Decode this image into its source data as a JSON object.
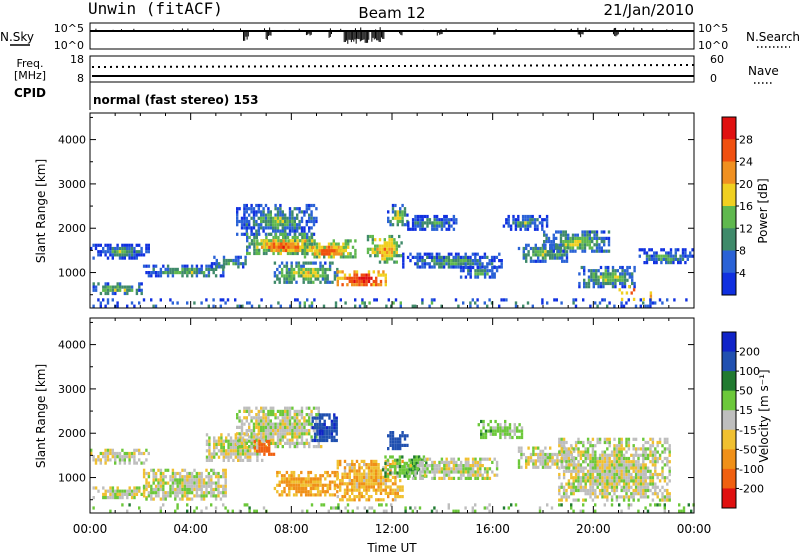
{
  "header": {
    "station": "Unwin (fitACF)",
    "beam": "Beam 12",
    "date": "21/Jan/2010"
  },
  "noise_panel": {
    "left_label": "N.Sky",
    "right_label": "N.Search",
    "left_ticks": [
      "10^5",
      "10^0"
    ],
    "right_ticks": [
      "10^5",
      "10^0"
    ]
  },
  "freq_panel": {
    "left_label_1": "Freq.",
    "left_label_2": "[MHz]",
    "right_label": "Nave",
    "left_ticks": [
      "18",
      "8"
    ],
    "right_ticks": [
      "60",
      "0"
    ]
  },
  "cpid_panel": {
    "label": "CPID",
    "text": "normal (fast stereo) 153"
  },
  "chart_data": [
    {
      "type": "heatmap",
      "panel": "power",
      "ylabel": "Slant Range [km]",
      "yticks": [
        1000,
        2000,
        3000,
        4000
      ],
      "ylim": [
        200,
        4600
      ],
      "xlim": [
        0,
        24
      ],
      "colorbar": {
        "label": "Power [dB]",
        "ticks": [
          4,
          8,
          12,
          16,
          20,
          24,
          28
        ],
        "colors": [
          "#1030e0",
          "#2a62d6",
          "#3f8a6a",
          "#5fb84e",
          "#f0d020",
          "#f09020",
          "#f05010",
          "#e01010"
        ],
        "range": [
          0,
          32
        ]
      },
      "scatter_regions": [
        {
          "t": [
            0.0,
            2.3
          ],
          "r": [
            1350,
            1650
          ],
          "p": 6
        },
        {
          "t": [
            0.1,
            2.1
          ],
          "r": [
            550,
            780
          ],
          "p": 10
        },
        {
          "t": [
            2.1,
            5.3
          ],
          "r": [
            940,
            1180
          ],
          "p": 9
        },
        {
          "t": [
            4.8,
            6.3
          ],
          "r": [
            1150,
            1380
          ],
          "p": 8
        },
        {
          "t": [
            5.8,
            9.0
          ],
          "r": [
            1850,
            2550
          ],
          "p": 8
        },
        {
          "t": [
            6.2,
            8.8
          ],
          "r": [
            1420,
            1900
          ],
          "p": 15
        },
        {
          "t": [
            6.6,
            8.6
          ],
          "r": [
            1500,
            1750
          ],
          "p": 22
        },
        {
          "t": [
            8.4,
            10.5
          ],
          "r": [
            1350,
            1750
          ],
          "p": 17
        },
        {
          "t": [
            8.8,
            10.1
          ],
          "r": [
            1400,
            1600
          ],
          "p": 22
        },
        {
          "t": [
            7.3,
            9.8
          ],
          "r": [
            800,
            1250
          ],
          "p": 12
        },
        {
          "t": [
            9.8,
            11.8
          ],
          "r": [
            720,
            1050
          ],
          "p": 24
        },
        {
          "t": [
            11.0,
            12.4
          ],
          "r": [
            1250,
            1850
          ],
          "p": 16
        },
        {
          "t": [
            11.8,
            12.6
          ],
          "r": [
            2050,
            2550
          ],
          "p": 10
        },
        {
          "t": [
            12.6,
            14.6
          ],
          "r": [
            2000,
            2300
          ],
          "p": 6
        },
        {
          "t": [
            12.4,
            16.4
          ],
          "r": [
            1100,
            1450
          ],
          "p": 7
        },
        {
          "t": [
            14.7,
            16.3
          ],
          "r": [
            900,
            1150
          ],
          "p": 7
        },
        {
          "t": [
            16.4,
            18.2
          ],
          "r": [
            2000,
            2300
          ],
          "p": 6
        },
        {
          "t": [
            17.0,
            19.0
          ],
          "r": [
            1280,
            1650
          ],
          "p": 10
        },
        {
          "t": [
            18.0,
            20.6
          ],
          "r": [
            1450,
            1950
          ],
          "p": 10
        },
        {
          "t": [
            19.4,
            21.6
          ],
          "r": [
            700,
            1150
          ],
          "p": 10
        },
        {
          "t": [
            21.0,
            22.4
          ],
          "r": [
            430,
            720
          ],
          "p": 22
        },
        {
          "t": [
            21.8,
            23.9
          ],
          "r": [
            1200,
            1550
          ],
          "p": 6
        },
        {
          "t": [
            0.0,
            24.0
          ],
          "r": [
            220,
            420
          ],
          "p": 7
        }
      ]
    },
    {
      "type": "heatmap",
      "panel": "velocity",
      "ylabel": "Slant Range [km]",
      "xlabel": "Time UT",
      "xticks": [
        "00:00",
        "04:00",
        "08:00",
        "12:00",
        "16:00",
        "20:00",
        "00:00"
      ],
      "yticks": [
        1000,
        2000,
        3000,
        4000
      ],
      "ylim": [
        200,
        4600
      ],
      "xlim": [
        0,
        24
      ],
      "colorbar": {
        "label": "Velocity [m s⁻¹]",
        "ticks": [
          200,
          100,
          50,
          15,
          -15,
          -50,
          -100,
          -200
        ],
        "colors": [
          "#1024c8",
          "#2050b0",
          "#207a30",
          "#6cc83a",
          "#bebebe",
          "#f0c030",
          "#f09018",
          "#f06010",
          "#e01010"
        ],
        "range": [
          -250,
          250
        ]
      },
      "scatter_regions": [
        {
          "t": [
            0.0,
            2.3
          ],
          "r": [
            1350,
            1650
          ],
          "v": 0
        },
        {
          "t": [
            0.1,
            2.2
          ],
          "r": [
            520,
            800
          ],
          "v": 0
        },
        {
          "t": [
            2.1,
            5.4
          ],
          "r": [
            500,
            1200
          ],
          "v": 0
        },
        {
          "t": [
            4.6,
            6.8
          ],
          "r": [
            1400,
            2000
          ],
          "v": 0
        },
        {
          "t": [
            5.8,
            9.2
          ],
          "r": [
            1700,
            2600
          ],
          "v": 0
        },
        {
          "t": [
            6.5,
            7.3
          ],
          "r": [
            1550,
            1850
          ],
          "v": -150
        },
        {
          "t": [
            8.8,
            9.8
          ],
          "r": [
            1850,
            2450
          ],
          "v": 180
        },
        {
          "t": [
            7.3,
            9.8
          ],
          "r": [
            600,
            1150
          ],
          "v": -60
        },
        {
          "t": [
            9.8,
            12.4
          ],
          "r": [
            500,
            1400
          ],
          "v": -40
        },
        {
          "t": [
            11.6,
            13.4
          ],
          "r": [
            1000,
            1500
          ],
          "v": 40
        },
        {
          "t": [
            11.8,
            12.6
          ],
          "r": [
            1650,
            2050
          ],
          "v": 160
        },
        {
          "t": [
            12.6,
            16.2
          ],
          "r": [
            1000,
            1450
          ],
          "v": 0
        },
        {
          "t": [
            17.0,
            19.2
          ],
          "r": [
            1200,
            1700
          ],
          "v": 0
        },
        {
          "t": [
            18.6,
            23.0
          ],
          "r": [
            500,
            1900
          ],
          "v": 0
        },
        {
          "t": [
            15.4,
            17.2
          ],
          "r": [
            1900,
            2300
          ],
          "v": 30
        },
        {
          "t": [
            0.0,
            24.0
          ],
          "r": [
            220,
            420
          ],
          "v": 25
        }
      ]
    }
  ]
}
